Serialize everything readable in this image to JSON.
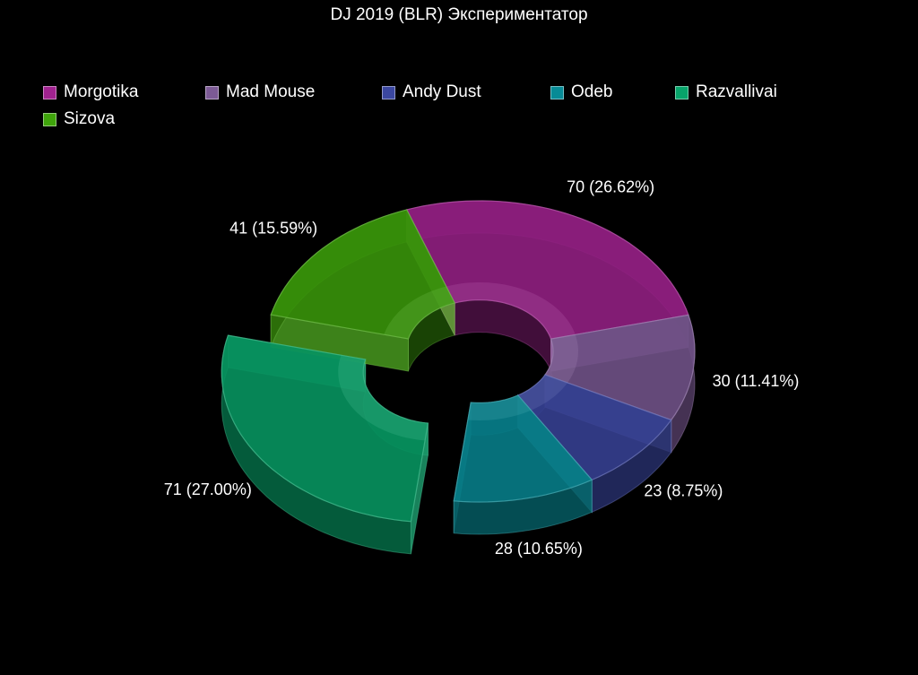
{
  "chart_data": {
    "type": "pie",
    "title": "DJ 2019 (BLR) Экспериментатор",
    "variant": "3d-donut",
    "legend_position": "top-left",
    "series": [
      {
        "name": "Morgotika",
        "value": 70,
        "label": "70 (26.62%)",
        "color": "#a0228f"
      },
      {
        "name": "Mad Mouse",
        "value": 30,
        "label": "30 (11.41%)",
        "color": "#7c5a95"
      },
      {
        "name": "Andy Dust",
        "value": 23,
        "label": "23 (8.75%)",
        "color": "#3b47a0"
      },
      {
        "name": "Odeb",
        "value": 28,
        "label": "28 (10.65%)",
        "color": "#078b96"
      },
      {
        "name": "Razvallivai",
        "value": 71,
        "label": "71 (27.00%)",
        "color": "#07a46a",
        "exploded": true
      },
      {
        "name": "Sizova",
        "value": 41,
        "label": "41 (15.59%)",
        "color": "#3fa40b"
      }
    ]
  }
}
